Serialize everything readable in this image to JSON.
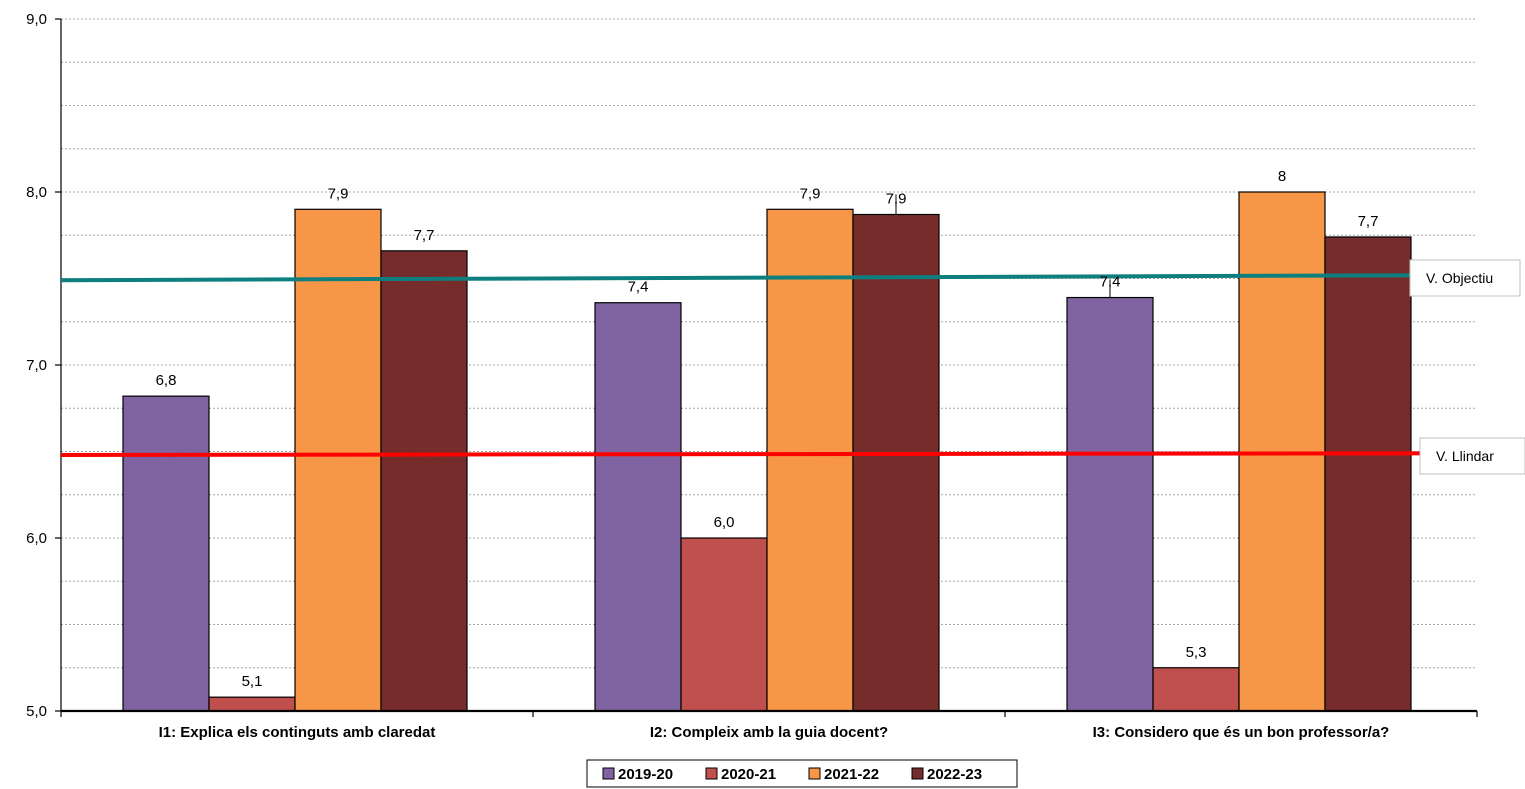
{
  "chart_data": {
    "type": "bar",
    "categories": [
      "I1: Explica els continguts amb claredat",
      "I2: Compleix amb la guia docent?",
      "I3: Considero que és un bon professor/a?"
    ],
    "series": [
      {
        "name": "2019-20",
        "color": "#8064a2",
        "values": [
          6.82,
          7.36,
          7.39
        ],
        "labels": [
          "6,8",
          "7,4",
          "7,4"
        ]
      },
      {
        "name": "2020-21",
        "color": "#c0504d",
        "values": [
          5.08,
          6.0,
          5.25
        ],
        "labels": [
          "5,1",
          "6,0",
          "5,3"
        ]
      },
      {
        "name": "2021-22",
        "color": "#f79646",
        "values": [
          7.9,
          7.9,
          8.0
        ],
        "labels": [
          "7,9",
          "7,9",
          "8"
        ]
      },
      {
        "name": "2022-23",
        "color": "#772c2c",
        "values": [
          7.66,
          7.87,
          7.74
        ],
        "labels": [
          "7,7",
          "7,9",
          "7,7"
        ]
      }
    ],
    "ylim": [
      5.0,
      9.0
    ],
    "y_ticks": [
      5.0,
      6.0,
      7.0,
      8.0,
      9.0
    ],
    "y_tick_labels": [
      "5,0",
      "6,0",
      "7,0",
      "8,0",
      "9,0"
    ],
    "minor_gridlines_step": 0.25,
    "grid": true,
    "legend_position": "bottom",
    "reference_lines": [
      {
        "label": "V. Objectiu",
        "color": "#0e7f7f",
        "value_start": 7.49,
        "value_end": 7.52
      },
      {
        "label": "V. Llindar",
        "color": "#ff0000",
        "value_start": 6.48,
        "value_end": 6.49
      }
    ],
    "title": "",
    "xlabel": "",
    "ylabel": ""
  }
}
